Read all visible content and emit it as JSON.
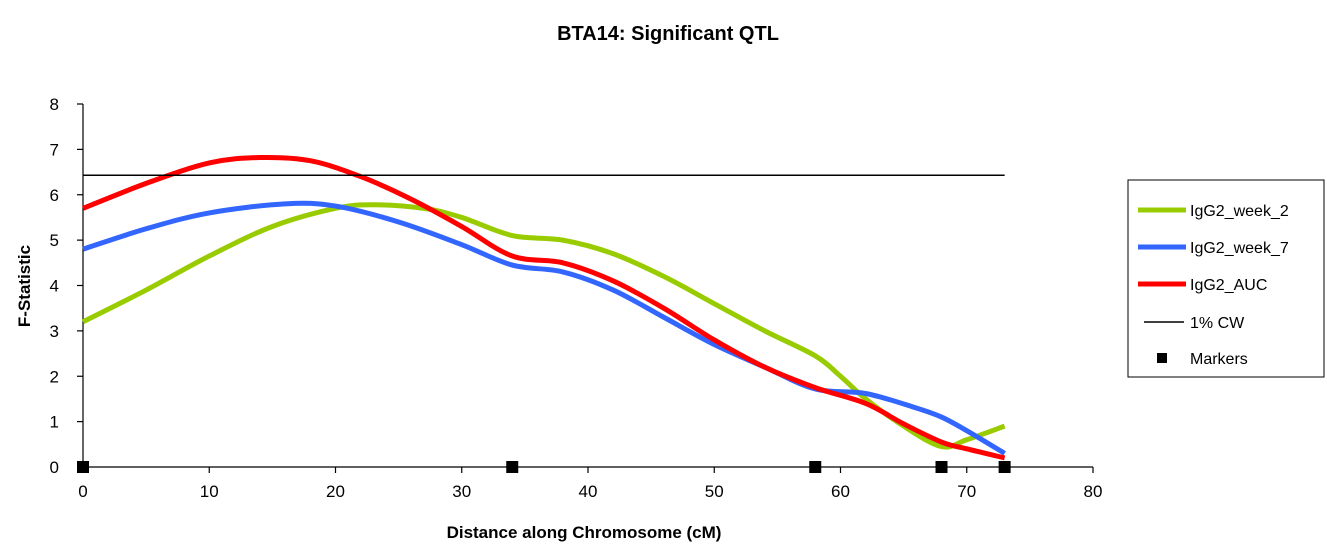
{
  "chart_data": {
    "type": "line",
    "title": "BTA14: Significant QTL",
    "xlabel": "Distance along Chromosome (cM)",
    "ylabel": "F-Statistic",
    "xlim": [
      0,
      80
    ],
    "ylim": [
      0,
      8
    ],
    "x_ticks": [
      "0",
      "10",
      "20",
      "30",
      "40",
      "50",
      "60",
      "70",
      "80"
    ],
    "y_ticks": [
      "0",
      "1",
      "2",
      "3",
      "4",
      "5",
      "6",
      "7",
      "8"
    ],
    "grid": false,
    "legend_position": "right",
    "series": [
      {
        "name": "IgG2_week_2",
        "color": "#99cc00",
        "x": [
          0,
          5,
          10,
          15,
          20,
          23,
          27,
          30,
          34,
          38,
          42,
          46,
          50,
          54,
          58,
          60,
          62,
          65,
          68,
          70,
          73
        ],
        "y": [
          3.2,
          3.9,
          4.65,
          5.3,
          5.7,
          5.78,
          5.7,
          5.5,
          5.1,
          5.0,
          4.7,
          4.2,
          3.6,
          3.0,
          2.45,
          2.0,
          1.5,
          0.9,
          0.45,
          0.6,
          0.9
        ]
      },
      {
        "name": "IgG2_week_7",
        "color": "#3366ff",
        "x": [
          0,
          5,
          10,
          16,
          20,
          25,
          30,
          34,
          38,
          42,
          46,
          50,
          54,
          58,
          62,
          66,
          68,
          70,
          73
        ],
        "y": [
          4.8,
          5.25,
          5.6,
          5.8,
          5.75,
          5.4,
          4.9,
          4.45,
          4.3,
          3.9,
          3.3,
          2.7,
          2.2,
          1.72,
          1.62,
          1.3,
          1.1,
          0.8,
          0.3
        ]
      },
      {
        "name": "IgG2_AUC",
        "color": "#ff0000",
        "x": [
          0,
          5,
          10,
          14,
          18,
          22,
          26,
          30,
          34,
          38,
          42,
          46,
          50,
          54,
          58,
          62,
          65,
          68,
          70,
          73
        ],
        "y": [
          5.7,
          6.25,
          6.7,
          6.82,
          6.75,
          6.4,
          5.9,
          5.3,
          4.65,
          4.5,
          4.1,
          3.5,
          2.8,
          2.2,
          1.75,
          1.4,
          0.95,
          0.55,
          0.4,
          0.2
        ]
      }
    ],
    "threshold": {
      "name": "1% CW",
      "y": 6.43,
      "x_range": [
        0,
        73
      ],
      "color": "#000000"
    },
    "markers": {
      "name": "Markers",
      "x": [
        0,
        34,
        58,
        68,
        73
      ],
      "y": 0,
      "color": "#000000"
    }
  }
}
